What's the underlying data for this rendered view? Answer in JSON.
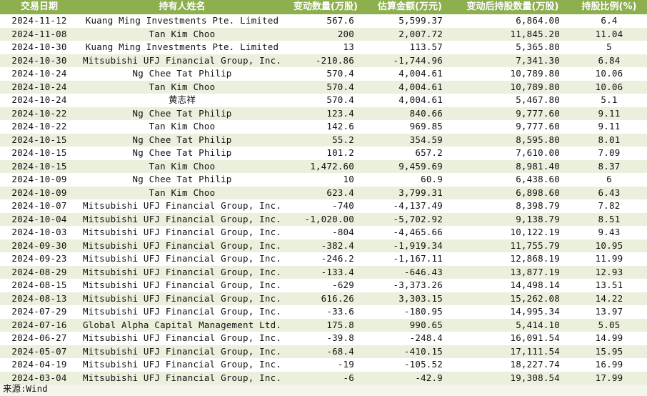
{
  "table": {
    "headers": [
      "交易日期",
      "持有人姓名",
      "变动数量(万股)",
      "估算金额(万元)",
      "变动后持股数量(万股)",
      "持股比例(%)"
    ],
    "rows": [
      [
        "2024-11-12",
        "Kuang Ming Investments Pte. Limited",
        "567.6",
        "5,599.37",
        "6,864.00",
        "6.4"
      ],
      [
        "2024-11-08",
        "Tan Kim Choo",
        "200",
        "2,007.72",
        "11,845.20",
        "11.04"
      ],
      [
        "2024-10-30",
        "Kuang Ming Investments Pte. Limited",
        "13",
        "113.57",
        "5,365.80",
        "5"
      ],
      [
        "2024-10-30",
        "Mitsubishi UFJ Financial Group, Inc.",
        "-210.86",
        "-1,744.96",
        "7,341.30",
        "6.84"
      ],
      [
        "2024-10-24",
        "Ng Chee Tat Philip",
        "570.4",
        "4,004.61",
        "10,789.80",
        "10.06"
      ],
      [
        "2024-10-24",
        "Tan Kim Choo",
        "570.4",
        "4,004.61",
        "10,789.80",
        "10.06"
      ],
      [
        "2024-10-24",
        "黄志祥",
        "570.4",
        "4,004.61",
        "5,467.80",
        "5.1"
      ],
      [
        "2024-10-22",
        "Ng Chee Tat Philip",
        "123.4",
        "840.66",
        "9,777.60",
        "9.11"
      ],
      [
        "2024-10-22",
        "Tan Kim Choo",
        "142.6",
        "969.85",
        "9,777.60",
        "9.11"
      ],
      [
        "2024-10-15",
        "Ng Chee Tat Philip",
        "55.2",
        "354.59",
        "8,595.80",
        "8.01"
      ],
      [
        "2024-10-15",
        "Ng Chee Tat Philip",
        "101.2",
        "657.2",
        "7,610.00",
        "7.09"
      ],
      [
        "2024-10-15",
        "Tan Kim Choo",
        "1,472.60",
        "9,459.69",
        "8,981.40",
        "8.37"
      ],
      [
        "2024-10-09",
        "Ng Chee Tat Philip",
        "10",
        "60.9",
        "6,438.60",
        "6"
      ],
      [
        "2024-10-09",
        "Tan Kim Choo",
        "623.4",
        "3,799.31",
        "6,898.60",
        "6.43"
      ],
      [
        "2024-10-07",
        "Mitsubishi UFJ Financial Group, Inc.",
        "-740",
        "-4,137.49",
        "8,398.79",
        "7.82"
      ],
      [
        "2024-10-04",
        "Mitsubishi UFJ Financial Group, Inc.",
        "-1,020.00",
        "-5,702.92",
        "9,138.79",
        "8.51"
      ],
      [
        "2024-10-03",
        "Mitsubishi UFJ Financial Group, Inc.",
        "-804",
        "-4,465.66",
        "10,122.19",
        "9.43"
      ],
      [
        "2024-09-30",
        "Mitsubishi UFJ Financial Group, Inc.",
        "-382.4",
        "-1,919.34",
        "11,755.79",
        "10.95"
      ],
      [
        "2024-09-23",
        "Mitsubishi UFJ Financial Group, Inc.",
        "-246.2",
        "-1,167.11",
        "12,868.19",
        "11.99"
      ],
      [
        "2024-08-29",
        "Mitsubishi UFJ Financial Group, Inc.",
        "-133.4",
        "-646.43",
        "13,877.19",
        "12.93"
      ],
      [
        "2024-08-15",
        "Mitsubishi UFJ Financial Group, Inc.",
        "-629",
        "-3,373.26",
        "14,498.14",
        "13.51"
      ],
      [
        "2024-08-13",
        "Mitsubishi UFJ Financial Group, Inc.",
        "616.26",
        "3,303.15",
        "15,262.08",
        "14.22"
      ],
      [
        "2024-07-29",
        "Mitsubishi UFJ Financial Group, Inc.",
        "-33.6",
        "-180.95",
        "14,995.34",
        "13.97"
      ],
      [
        "2024-07-16",
        "Global Alpha Capital Management Ltd.",
        "175.8",
        "990.65",
        "5,414.10",
        "5.05"
      ],
      [
        "2024-06-27",
        "Mitsubishi UFJ Financial Group, Inc.",
        "-39.8",
        "-248.4",
        "16,091.54",
        "14.99"
      ],
      [
        "2024-05-07",
        "Mitsubishi UFJ Financial Group, Inc.",
        "-68.4",
        "-410.15",
        "17,111.54",
        "15.95"
      ],
      [
        "2024-04-19",
        "Mitsubishi UFJ Financial Group, Inc.",
        "-19",
        "-105.52",
        "18,227.74",
        "16.99"
      ],
      [
        "2024-03-04",
        "Mitsubishi UFJ Financial Group, Inc.",
        "-6",
        "-42.9",
        "19,308.54",
        "17.99"
      ]
    ]
  },
  "source": "来源:Wind",
  "colors": {
    "header_bg": "#8daf4e",
    "header_text": "#ffffff",
    "row_alt": "#ebf0dd",
    "row": "#ffffff"
  }
}
